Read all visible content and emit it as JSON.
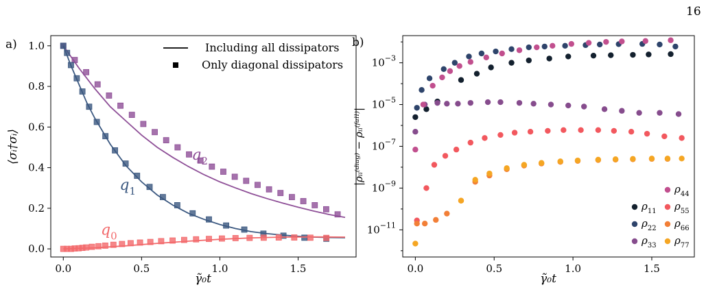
{
  "page_number": "16",
  "chart_data": [
    {
      "panel_label": "a)",
      "type": "line",
      "xlabel": "γ̃₀t",
      "ylabel": "⟨σᵢ†σᵢ⟩",
      "xlim": [
        -0.08,
        1.87
      ],
      "ylim": [
        -0.04,
        1.05
      ],
      "xticks": [
        0.0,
        0.5,
        1.0,
        1.5
      ],
      "xtick_labels": [
        "0.0",
        "0.5",
        "1.0",
        "1.5"
      ],
      "yticks": [
        0.0,
        0.2,
        0.4,
        0.6,
        0.8,
        1.0
      ],
      "ytick_labels": [
        "0.0",
        "0.2",
        "0.4",
        "0.6",
        "0.8",
        "1.0"
      ],
      "legend": {
        "placement": "top-right",
        "entries": [
          {
            "label": "Including all dissipators",
            "marker": "line"
          },
          {
            "label": "Only diagonal dissipators",
            "marker": "square"
          }
        ]
      },
      "series": [
        {
          "name": "q2",
          "label_main": "q",
          "label_sub": "2",
          "color": "#8e4f97",
          "line_x": [
            0.0,
            0.1,
            0.2,
            0.3,
            0.4,
            0.5,
            0.6,
            0.7,
            0.8,
            0.9,
            1.0,
            1.1,
            1.2,
            1.3,
            1.4,
            1.5,
            1.6,
            1.7,
            1.8
          ],
          "line_y": [
            1.0,
            0.89,
            0.79,
            0.7,
            0.63,
            0.56,
            0.5,
            0.45,
            0.405,
            0.365,
            0.33,
            0.3,
            0.272,
            0.248,
            0.226,
            0.205,
            0.186,
            0.169,
            0.155
          ],
          "points_x": [
            0.0,
            0.073,
            0.146,
            0.219,
            0.292,
            0.365,
            0.438,
            0.511,
            0.584,
            0.657,
            0.73,
            0.803,
            0.876,
            0.949,
            1.022,
            1.095,
            1.168,
            1.241,
            1.314,
            1.387,
            1.46,
            1.533,
            1.606,
            1.679,
            1.752
          ],
          "points_y": [
            1.0,
            0.93,
            0.87,
            0.81,
            0.755,
            0.705,
            0.66,
            0.615,
            0.575,
            0.535,
            0.5,
            0.465,
            0.435,
            0.405,
            0.38,
            0.355,
            0.335,
            0.315,
            0.293,
            0.275,
            0.255,
            0.235,
            0.215,
            0.195,
            0.17
          ]
        },
        {
          "name": "q1",
          "label_main": "q",
          "label_sub": "1",
          "color": "#3b5880",
          "line_x": [
            0.0,
            0.05,
            0.1,
            0.15,
            0.2,
            0.3,
            0.4,
            0.5,
            0.6,
            0.7,
            0.8,
            0.9,
            1.0,
            1.1,
            1.2,
            1.3,
            1.4,
            1.5,
            1.6,
            1.7,
            1.8
          ],
          "line_y": [
            1.0,
            0.9,
            0.81,
            0.72,
            0.645,
            0.515,
            0.41,
            0.33,
            0.265,
            0.215,
            0.175,
            0.145,
            0.12,
            0.1,
            0.085,
            0.075,
            0.068,
            0.062,
            0.058,
            0.056,
            0.055
          ],
          "points_x": [
            0.0,
            0.024,
            0.049,
            0.086,
            0.122,
            0.165,
            0.214,
            0.269,
            0.33,
            0.398,
            0.471,
            0.551,
            0.636,
            0.728,
            0.826,
            0.93,
            1.04,
            1.156,
            1.278,
            1.406,
            1.54,
            1.68
          ],
          "points_y": [
            1.0,
            0.965,
            0.905,
            0.84,
            0.775,
            0.7,
            0.625,
            0.555,
            0.485,
            0.42,
            0.36,
            0.305,
            0.255,
            0.215,
            0.175,
            0.145,
            0.115,
            0.095,
            0.075,
            0.065,
            0.055,
            0.05
          ]
        },
        {
          "name": "q0",
          "label_main": "q",
          "label_sub": "0",
          "color": "#f2696b",
          "line_x": [
            0.0,
            0.2,
            0.4,
            0.6,
            0.8,
            1.0,
            1.2,
            1.4,
            1.6,
            1.8
          ],
          "line_y": [
            0.0,
            0.005,
            0.015,
            0.027,
            0.038,
            0.047,
            0.054,
            0.058,
            0.059,
            0.058
          ],
          "points_x": [
            0.0,
            0.024,
            0.049,
            0.073,
            0.098,
            0.122,
            0.146,
            0.183,
            0.225,
            0.268,
            0.32,
            0.375,
            0.43,
            0.49,
            0.556,
            0.625,
            0.698,
            0.772,
            0.848,
            0.93,
            1.013,
            1.1,
            1.19,
            1.28,
            1.376,
            1.475,
            1.578,
            1.68
          ],
          "points_y": [
            0.0,
            0.0,
            0.0,
            0.002,
            0.003,
            0.005,
            0.007,
            0.01,
            0.013,
            0.016,
            0.02,
            0.024,
            0.028,
            0.031,
            0.034,
            0.038,
            0.041,
            0.044,
            0.047,
            0.049,
            0.051,
            0.053,
            0.054,
            0.055,
            0.056,
            0.056,
            0.055,
            0.054
          ]
        }
      ]
    },
    {
      "panel_label": "b)",
      "type": "scatter",
      "xlabel": "γ̃₀t",
      "ylabel": "|ρᵢᵢ⁽ᵈⁱᵃᵍ⁾ − ρᵢᵢ⁽ᶠᵘˡˡ⁾|",
      "yscale": "log",
      "xlim": [
        -0.08,
        1.77
      ],
      "ylim_log10": [
        -12.3,
        -1.7
      ],
      "xticks": [
        0.0,
        0.5,
        1.0,
        1.5
      ],
      "xtick_labels": [
        "0.0",
        "0.5",
        "1.0",
        "1.5"
      ],
      "yticks_log10": [
        -3,
        -5,
        -7,
        -9,
        -11
      ],
      "legend": {
        "placement": "bottom-right"
      },
      "series": [
        {
          "name": "ρ11",
          "label_main": "ρ",
          "label_sub": "11",
          "color": "#13202e",
          "x": [
            0.0,
            0.07,
            0.14,
            0.29,
            0.39,
            0.48,
            0.61,
            0.72,
            0.85,
            0.97,
            1.13,
            1.24,
            1.38,
            1.48,
            1.62
          ],
          "y": [
            2.5e-06,
            6e-06,
            1.4e-05,
            0.00015,
            0.0003,
            0.0006,
            0.001,
            0.0013,
            0.0016,
            0.002,
            0.0022,
            0.0023,
            0.0024,
            0.0025,
            0.0026
          ]
        },
        {
          "name": "ρ22",
          "label_main": "ρ",
          "label_sub": "22",
          "color": "#2e446b",
          "x": [
            0.01,
            0.04,
            0.09,
            0.18,
            0.25,
            0.34,
            0.42,
            0.51,
            0.61,
            0.72,
            0.82,
            0.95,
            1.08,
            1.17,
            1.29,
            1.44,
            1.55,
            1.65
          ],
          "y": [
            7e-06,
            5e-05,
            0.00018,
            0.0005,
            0.001,
            0.002,
            0.0028,
            0.0035,
            0.0045,
            0.0055,
            0.006,
            0.0065,
            0.007,
            0.0075,
            0.0078,
            0.008,
            0.0075,
            0.006
          ]
        },
        {
          "name": "ρ33",
          "label_main": "ρ",
          "label_sub": "33",
          "color": "#864c8d",
          "x": [
            0.0,
            0.06,
            0.14,
            0.2,
            0.27,
            0.35,
            0.46,
            0.54,
            0.66,
            0.75,
            0.86,
            0.97,
            1.07,
            1.2,
            1.31,
            1.42,
            1.55,
            1.67
          ],
          "y": [
            5e-07,
            1e-05,
            1.2e-05,
            1.1e-05,
            1.1e-05,
            1.2e-05,
            1.3e-05,
            1.3e-05,
            1.2e-05,
            1.1e-05,
            1e-05,
            9e-06,
            8e-06,
            6e-06,
            5e-06,
            4e-06,
            4e-06,
            3.5e-06
          ]
        },
        {
          "name": "ρ44",
          "label_main": "ρ",
          "label_sub": "44",
          "color": "#c14f8e",
          "x": [
            0.0,
            0.05,
            0.11,
            0.17,
            0.22,
            0.28,
            0.35,
            0.45,
            0.55,
            0.66,
            0.77,
            0.87,
            0.99,
            1.1,
            1.21,
            1.31,
            1.46,
            1.62
          ],
          "y": [
            7e-08,
            1e-05,
            8e-05,
            0.0002,
            0.0004,
            0.0007,
            0.0011,
            0.0018,
            0.0028,
            0.004,
            0.0055,
            0.0065,
            0.008,
            0.009,
            0.01,
            0.0105,
            0.011,
            0.012
          ]
        },
        {
          "name": "ρ55",
          "label_main": "ρ",
          "label_sub": "55",
          "color": "#f2585e",
          "x": [
            0.01,
            0.07,
            0.12,
            0.19,
            0.26,
            0.35,
            0.44,
            0.54,
            0.63,
            0.73,
            0.84,
            0.94,
            1.05,
            1.16,
            1.26,
            1.37,
            1.47,
            1.58,
            1.69
          ],
          "y": [
            2.8e-11,
            1e-09,
            1.3e-08,
            3.5e-08,
            7e-08,
            1.5e-07,
            2.5e-07,
            3.5e-07,
            4.5e-07,
            5e-07,
            5.5e-07,
            6e-07,
            6e-07,
            6e-07,
            5.5e-07,
            5e-07,
            4e-07,
            3e-07,
            2.5e-07
          ]
        },
        {
          "name": "ρ66",
          "label_main": "ρ",
          "label_sub": "66",
          "color": "#f27f37",
          "x": [
            0.01,
            0.06,
            0.13,
            0.2,
            0.29,
            0.38,
            0.47,
            0.58,
            0.69,
            0.8,
            0.92,
            1.03,
            1.16,
            1.27,
            1.38,
            1.5,
            1.6
          ],
          "y": [
            2e-11,
            2e-11,
            3e-11,
            6e-11,
            2.5e-10,
            2e-09,
            4e-09,
            8e-09,
            1.2e-08,
            1.5e-08,
            1.8e-08,
            2e-08,
            2.2e-08,
            2.3e-08,
            2.4e-08,
            2.5e-08,
            2.5e-08
          ]
        },
        {
          "name": "ρ77",
          "label_main": "ρ",
          "label_sub": "77",
          "color": "#f5a623",
          "x": [
            0.0,
            0.29,
            0.38,
            0.47,
            0.58,
            0.69,
            0.8,
            0.92,
            1.03,
            1.16,
            1.27,
            1.38,
            1.5,
            1.6,
            1.69
          ],
          "y": [
            2.2e-12,
            2.5e-10,
            2.5e-09,
            5e-09,
            9e-09,
            1.3e-08,
            1.6e-08,
            1.9e-08,
            2.1e-08,
            2.3e-08,
            2.4e-08,
            2.5e-08,
            2.6e-08,
            2.6e-08,
            2.6e-08
          ]
        }
      ]
    }
  ]
}
